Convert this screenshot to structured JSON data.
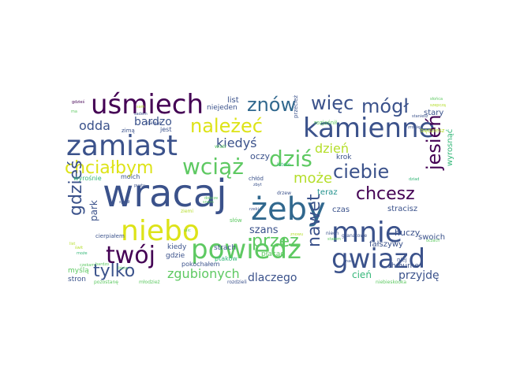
{
  "word_cloud": {
    "words": [
      {
        "text": "wracaj",
        "color": "#3b528b"
      },
      {
        "text": "żeby",
        "color": "#31688e"
      },
      {
        "text": "uśmiech",
        "color": "#440154"
      },
      {
        "text": "kamienne",
        "color": "#3b528b"
      },
      {
        "text": "zamiast",
        "color": "#3b528b"
      },
      {
        "text": "niebo",
        "color": "#dde318"
      },
      {
        "text": "mnie",
        "color": "#3b528b"
      },
      {
        "text": "powiedz",
        "color": "#5ec962"
      },
      {
        "text": "gwiazd",
        "color": "#3b528b"
      },
      {
        "text": "twój",
        "color": "#440154"
      },
      {
        "text": "znów",
        "color": "#31688e"
      },
      {
        "text": "więc",
        "color": "#3b528b"
      },
      {
        "text": "mógł",
        "color": "#3b528b"
      },
      {
        "text": "należeć",
        "color": "#dde318"
      },
      {
        "text": "chciałbym",
        "color": "#dde318"
      },
      {
        "text": "wciąż",
        "color": "#5ec962"
      },
      {
        "text": "dziś",
        "color": "#5ec962"
      },
      {
        "text": "ciebie",
        "color": "#3b528b"
      },
      {
        "text": "jesień",
        "color": "#440154"
      },
      {
        "text": "chcesz",
        "color": "#440154"
      },
      {
        "text": "przez",
        "color": "#5ec962"
      },
      {
        "text": "nawet",
        "color": "#3b528b"
      },
      {
        "text": "gdzieś",
        "color": "#3b528b"
      },
      {
        "text": "tylko",
        "color": "#3b528b"
      },
      {
        "text": "odda",
        "color": "#3b528b"
      },
      {
        "text": "bardzo",
        "color": "#3b528b"
      },
      {
        "text": "kiedyś",
        "color": "#3b528b"
      },
      {
        "text": "dzień",
        "color": "#b5de2b"
      },
      {
        "text": "może",
        "color": "#b5de2b"
      },
      {
        "text": "zgubionych",
        "color": "#5ec962"
      },
      {
        "text": "dlaczego",
        "color": "#3b528b"
      },
      {
        "text": "przyjdę",
        "color": "#3b528b"
      },
      {
        "text": "szans",
        "color": "#3b528b"
      },
      {
        "text": "park",
        "color": "#3b528b"
      },
      {
        "text": "cień",
        "color": "#35b779"
      },
      {
        "text": "huczy",
        "color": "#3b528b"
      },
      {
        "text": "swoich",
        "color": "#3b528b"
      },
      {
        "text": "fałszywy",
        "color": "#3b528b"
      },
      {
        "text": "czas",
        "color": "#3b528b"
      },
      {
        "text": "teraz",
        "color": "#21918c"
      },
      {
        "text": "stracisz",
        "color": "#3b528b"
      },
      {
        "text": "oczy",
        "color": "#3b528b"
      },
      {
        "text": "krok",
        "color": "#3b528b"
      },
      {
        "text": "list",
        "color": "#3b528b"
      },
      {
        "text": "niejeden",
        "color": "#3b528b"
      },
      {
        "text": "stary",
        "color": "#3b528b"
      },
      {
        "text": "wyrosnąć",
        "color": "#35b779"
      },
      {
        "text": "chmurne",
        "color": "#3b528b"
      },
      {
        "text": "kiedy",
        "color": "#3b528b"
      },
      {
        "text": "gdzie",
        "color": "#3b528b"
      },
      {
        "text": "pokochałem",
        "color": "#3b528b"
      },
      {
        "text": "płacąc",
        "color": "#5ec962"
      },
      {
        "text": "ptaków",
        "color": "#35b779"
      },
      {
        "text": "strach",
        "color": "#3b528b"
      },
      {
        "text": "myślą",
        "color": "#5ec962"
      },
      {
        "text": "stron",
        "color": "#3b528b"
      },
      {
        "text": "moich",
        "color": "#3b528b"
      },
      {
        "text": "wyrośnie",
        "color": "#35b779"
      },
      {
        "text": "cierpiałem",
        "color": "#3b528b"
      },
      {
        "text": "chłód",
        "color": "#3b528b"
      },
      {
        "text": "rozjaśnił",
        "color": "#5ec962"
      },
      {
        "text": "będziesz",
        "color": "#b5de2b"
      },
      {
        "text": "zimą",
        "color": "#3b528b"
      },
      {
        "text": "jest",
        "color": "#3b528b"
      },
      {
        "text": "przecież",
        "color": "#3b528b"
      },
      {
        "text": "słów",
        "color": "#5ec962"
      },
      {
        "text": "niech",
        "color": "#3b528b"
      },
      {
        "text": "dawał",
        "color": "#3b528b"
      },
      {
        "text": "latem",
        "color": "#35b779"
      },
      {
        "text": "wiatr",
        "color": "#5ec962"
      },
      {
        "text": "drzew",
        "color": "#3b528b"
      },
      {
        "text": "granatowe",
        "color": "#3b528b"
      },
      {
        "text": "niebieskooka",
        "color": "#5ec962"
      },
      {
        "text": "rozdzieli",
        "color": "#3b528b"
      },
      {
        "text": "młodzież",
        "color": "#5ec962"
      },
      {
        "text": "pozostanę",
        "color": "#5ec962"
      },
      {
        "text": "ziemi",
        "color": "#b5de2b"
      },
      {
        "text": "ulic",
        "color": "#5ec962"
      },
      {
        "text": "dziad",
        "color": "#35b779"
      },
      {
        "text": "niej",
        "color": "#3b528b"
      },
      {
        "text": "gdzieś",
        "color": "#440154"
      },
      {
        "text": "słońca",
        "color": "#5ec962"
      },
      {
        "text": "staniesz",
        "color": "#3b528b"
      },
      {
        "text": "ma",
        "color": "#5ec962"
      },
      {
        "text": "szepczą",
        "color": "#b5de2b"
      },
      {
        "text": "oczach",
        "color": "#5ec962"
      },
      {
        "text": "zrobię",
        "color": "#3b528b"
      },
      {
        "text": "może",
        "color": "#35b779"
      },
      {
        "text": "list",
        "color": "#b5de2b"
      },
      {
        "text": "sam",
        "color": "#b5de2b"
      },
      {
        "text": "spadł",
        "color": "#3b528b"
      },
      {
        "text": "bardzo",
        "color": "#5ec962"
      },
      {
        "text": "dobrze",
        "color": "#5ec962"
      },
      {
        "text": "znowu",
        "color": "#b5de2b"
      },
      {
        "text": "zbyt",
        "color": "#3b528b"
      },
      {
        "text": "snem",
        "color": "#5ec962"
      },
      {
        "text": "sadem",
        "color": "#3b528b"
      },
      {
        "text": "liście",
        "color": "#5ec962"
      },
      {
        "text": "rzeki",
        "color": "#3b528b"
      },
      {
        "text": "świt",
        "color": "#b5de2b"
      },
      {
        "text": "czekam",
        "color": "#5ec962"
      },
      {
        "text": "nad",
        "color": "#3b528b"
      },
      {
        "text": "pusty",
        "color": "#3b528b"
      },
      {
        "text": "stałem",
        "color": "#5ec962"
      }
    ]
  }
}
